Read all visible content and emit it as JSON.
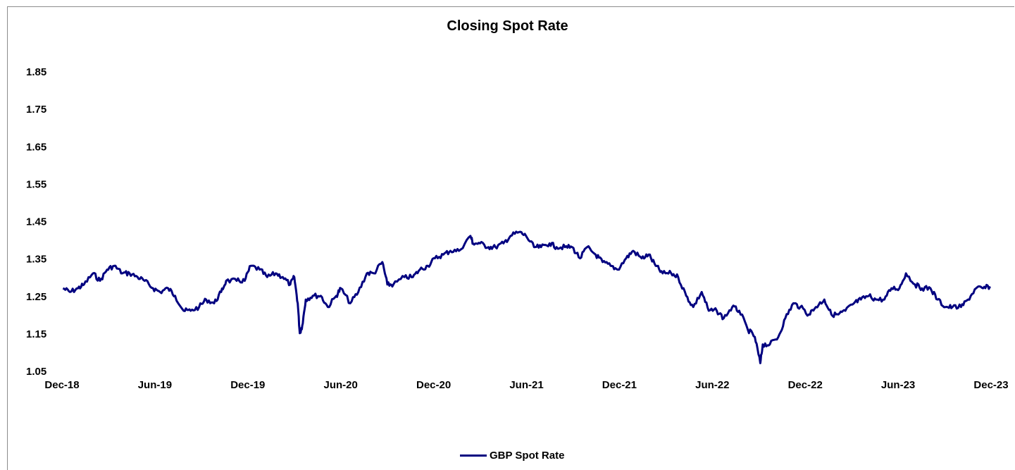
{
  "chart_data": {
    "type": "line",
    "title": "Closing Spot Rate",
    "xlabel": "",
    "ylabel": "",
    "ylim": [
      1.05,
      1.85
    ],
    "yticks": [
      "1.85",
      "1.75",
      "1.65",
      "1.55",
      "1.45",
      "1.35",
      "1.25",
      "1.15",
      "1.05"
    ],
    "xticks": [
      "Dec-18",
      "Jun-19",
      "Dec-19",
      "Jun-20",
      "Dec-20",
      "Jun-21",
      "Dec-21",
      "Jun-22",
      "Dec-22",
      "Jun-23",
      "Dec-23"
    ],
    "grid": false,
    "legend_position": "bottom",
    "series": [
      {
        "name": "GBP Spot Rate",
        "color": "#000080",
        "points": [
          [
            "2018-12-03",
            1.27
          ],
          [
            "2018-12-17",
            1.26
          ],
          [
            "2019-01-02",
            1.27
          ],
          [
            "2019-01-14",
            1.28
          ],
          [
            "2019-02-01",
            1.31
          ],
          [
            "2019-02-15",
            1.29
          ],
          [
            "2019-03-01",
            1.32
          ],
          [
            "2019-03-15",
            1.33
          ],
          [
            "2019-04-01",
            1.31
          ],
          [
            "2019-04-15",
            1.31
          ],
          [
            "2019-05-01",
            1.3
          ],
          [
            "2019-05-15",
            1.29
          ],
          [
            "2019-06-01",
            1.27
          ],
          [
            "2019-06-15",
            1.26
          ],
          [
            "2019-07-01",
            1.27
          ],
          [
            "2019-07-15",
            1.25
          ],
          [
            "2019-08-01",
            1.21
          ],
          [
            "2019-08-15",
            1.21
          ],
          [
            "2019-09-01",
            1.22
          ],
          [
            "2019-09-15",
            1.24
          ],
          [
            "2019-10-01",
            1.23
          ],
          [
            "2019-10-15",
            1.26
          ],
          [
            "2019-10-25",
            1.29
          ],
          [
            "2019-11-15",
            1.29
          ],
          [
            "2019-12-01",
            1.29
          ],
          [
            "2019-12-13",
            1.33
          ],
          [
            "2019-12-31",
            1.32
          ],
          [
            "2020-01-15",
            1.3
          ],
          [
            "2020-02-01",
            1.31
          ],
          [
            "2020-02-15",
            1.3
          ],
          [
            "2020-03-01",
            1.28
          ],
          [
            "2020-03-09",
            1.3
          ],
          [
            "2020-03-16",
            1.23
          ],
          [
            "2020-03-20",
            1.15
          ],
          [
            "2020-03-25",
            1.17
          ],
          [
            "2020-04-01",
            1.24
          ],
          [
            "2020-04-15",
            1.25
          ],
          [
            "2020-05-01",
            1.25
          ],
          [
            "2020-05-15",
            1.22
          ],
          [
            "2020-06-01",
            1.25
          ],
          [
            "2020-06-10",
            1.27
          ],
          [
            "2020-06-29",
            1.23
          ],
          [
            "2020-07-15",
            1.26
          ],
          [
            "2020-08-01",
            1.31
          ],
          [
            "2020-08-15",
            1.31
          ],
          [
            "2020-09-01",
            1.34
          ],
          [
            "2020-09-11",
            1.28
          ],
          [
            "2020-09-23",
            1.28
          ],
          [
            "2020-10-15",
            1.3
          ],
          [
            "2020-11-01",
            1.3
          ],
          [
            "2020-11-15",
            1.32
          ],
          [
            "2020-12-01",
            1.33
          ],
          [
            "2020-12-15",
            1.35
          ],
          [
            "2021-01-01",
            1.36
          ],
          [
            "2021-01-15",
            1.37
          ],
          [
            "2021-02-01",
            1.37
          ],
          [
            "2021-02-24",
            1.41
          ],
          [
            "2021-03-01",
            1.39
          ],
          [
            "2021-03-15",
            1.39
          ],
          [
            "2021-04-01",
            1.38
          ],
          [
            "2021-04-15",
            1.38
          ],
          [
            "2021-05-01",
            1.39
          ],
          [
            "2021-05-15",
            1.41
          ],
          [
            "2021-06-01",
            1.42
          ],
          [
            "2021-06-15",
            1.41
          ],
          [
            "2021-07-01",
            1.38
          ],
          [
            "2021-07-15",
            1.38
          ],
          [
            "2021-08-01",
            1.39
          ],
          [
            "2021-08-15",
            1.38
          ],
          [
            "2021-09-01",
            1.38
          ],
          [
            "2021-09-15",
            1.38
          ],
          [
            "2021-10-01",
            1.35
          ],
          [
            "2021-10-15",
            1.38
          ],
          [
            "2021-11-01",
            1.36
          ],
          [
            "2021-11-15",
            1.34
          ],
          [
            "2021-12-01",
            1.33
          ],
          [
            "2021-12-15",
            1.32
          ],
          [
            "2022-01-01",
            1.35
          ],
          [
            "2022-01-15",
            1.37
          ],
          [
            "2022-02-01",
            1.35
          ],
          [
            "2022-02-15",
            1.36
          ],
          [
            "2022-03-01",
            1.33
          ],
          [
            "2022-03-15",
            1.31
          ],
          [
            "2022-04-01",
            1.31
          ],
          [
            "2022-04-15",
            1.3
          ],
          [
            "2022-05-01",
            1.25
          ],
          [
            "2022-05-15",
            1.22
          ],
          [
            "2022-06-01",
            1.26
          ],
          [
            "2022-06-15",
            1.21
          ],
          [
            "2022-07-01",
            1.21
          ],
          [
            "2022-07-15",
            1.19
          ],
          [
            "2022-08-01",
            1.22
          ],
          [
            "2022-08-15",
            1.21
          ],
          [
            "2022-09-01",
            1.16
          ],
          [
            "2022-09-15",
            1.14
          ],
          [
            "2022-09-26",
            1.07
          ],
          [
            "2022-10-01",
            1.12
          ],
          [
            "2022-10-15",
            1.12
          ],
          [
            "2022-11-01",
            1.14
          ],
          [
            "2022-11-15",
            1.19
          ],
          [
            "2022-12-01",
            1.23
          ],
          [
            "2022-12-15",
            1.22
          ],
          [
            "2023-01-01",
            1.2
          ],
          [
            "2023-01-15",
            1.22
          ],
          [
            "2023-02-01",
            1.24
          ],
          [
            "2023-02-15",
            1.2
          ],
          [
            "2023-03-01",
            1.2
          ],
          [
            "2023-03-15",
            1.21
          ],
          [
            "2023-04-01",
            1.23
          ],
          [
            "2023-04-15",
            1.24
          ],
          [
            "2023-05-01",
            1.25
          ],
          [
            "2023-05-15",
            1.24
          ],
          [
            "2023-06-01",
            1.24
          ],
          [
            "2023-06-15",
            1.27
          ],
          [
            "2023-07-01",
            1.27
          ],
          [
            "2023-07-14",
            1.31
          ],
          [
            "2023-08-01",
            1.28
          ],
          [
            "2023-08-15",
            1.27
          ],
          [
            "2023-09-01",
            1.27
          ],
          [
            "2023-09-15",
            1.24
          ],
          [
            "2023-10-01",
            1.22
          ],
          [
            "2023-10-15",
            1.22
          ],
          [
            "2023-11-01",
            1.22
          ],
          [
            "2023-11-15",
            1.24
          ],
          [
            "2023-12-01",
            1.27
          ],
          [
            "2023-12-15",
            1.27
          ],
          [
            "2023-12-29",
            1.275
          ]
        ]
      }
    ]
  }
}
